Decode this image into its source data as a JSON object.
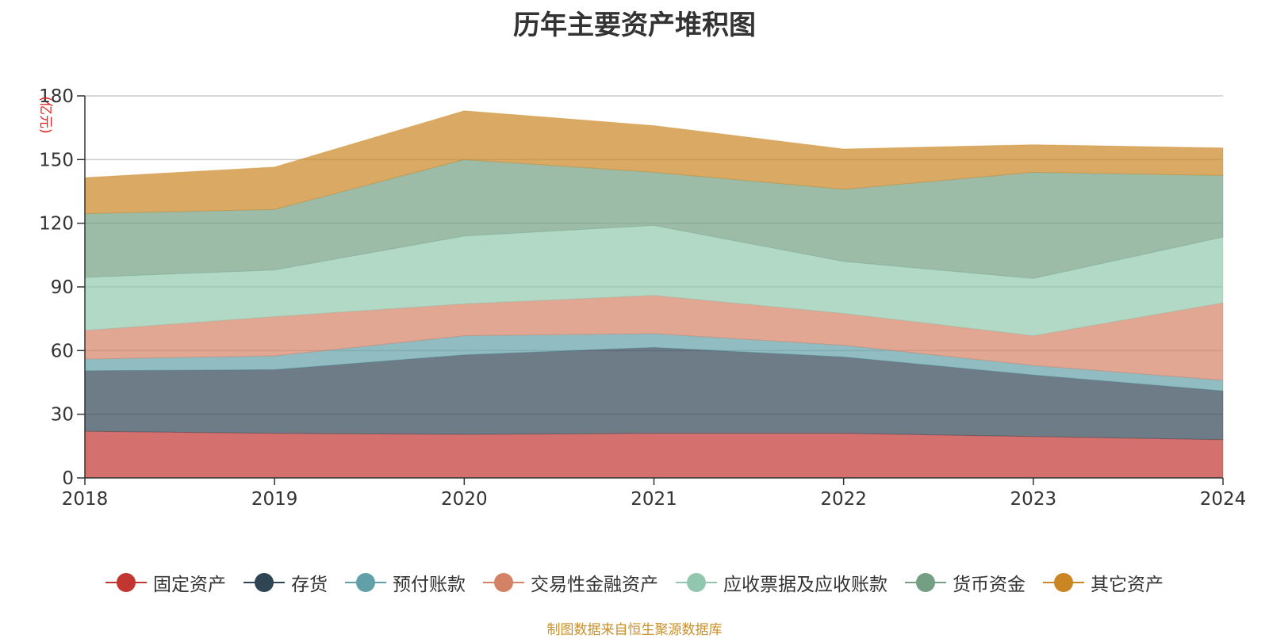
{
  "chart_data": {
    "type": "area",
    "stacked": true,
    "title": "历年主要资产堆积图",
    "y_unit": "(亿元)",
    "x": [
      "2018",
      "2019",
      "2020",
      "2021",
      "2022",
      "2023",
      "2024"
    ],
    "ylim": [
      0,
      180
    ],
    "yticks": [
      0,
      30,
      60,
      90,
      120,
      150,
      180
    ],
    "grid": true,
    "legend_position": "bottom",
    "series": [
      {
        "name": "固定资产",
        "color": "#c23531",
        "values": [
          22,
          21,
          20.5,
          21,
          21,
          19.5,
          18
        ]
      },
      {
        "name": "存货",
        "color": "#2f4554",
        "values": [
          28.5,
          30,
          37.5,
          40.5,
          36,
          29,
          23
        ]
      },
      {
        "name": "预付账款",
        "color": "#61a0a8",
        "values": [
          5.5,
          6.5,
          9,
          6.5,
          5.5,
          4.5,
          5
        ]
      },
      {
        "name": "交易性金融资产",
        "color": "#d48265",
        "values": [
          13.5,
          18.5,
          15,
          18,
          15,
          14,
          36.5
        ]
      },
      {
        "name": "应收票据及应收账款",
        "color": "#91c7ae",
        "values": [
          25,
          22,
          32,
          33,
          24.5,
          27,
          31
        ]
      },
      {
        "name": "货币资金",
        "color": "#749f83",
        "values": [
          30,
          28.5,
          36,
          25,
          34,
          50,
          29
        ]
      },
      {
        "name": "其它资产",
        "color": "#ca8622",
        "values": [
          17,
          20,
          23,
          22,
          19,
          13,
          13
        ]
      }
    ]
  },
  "source_note": "制图数据来自恒生聚源数据库"
}
